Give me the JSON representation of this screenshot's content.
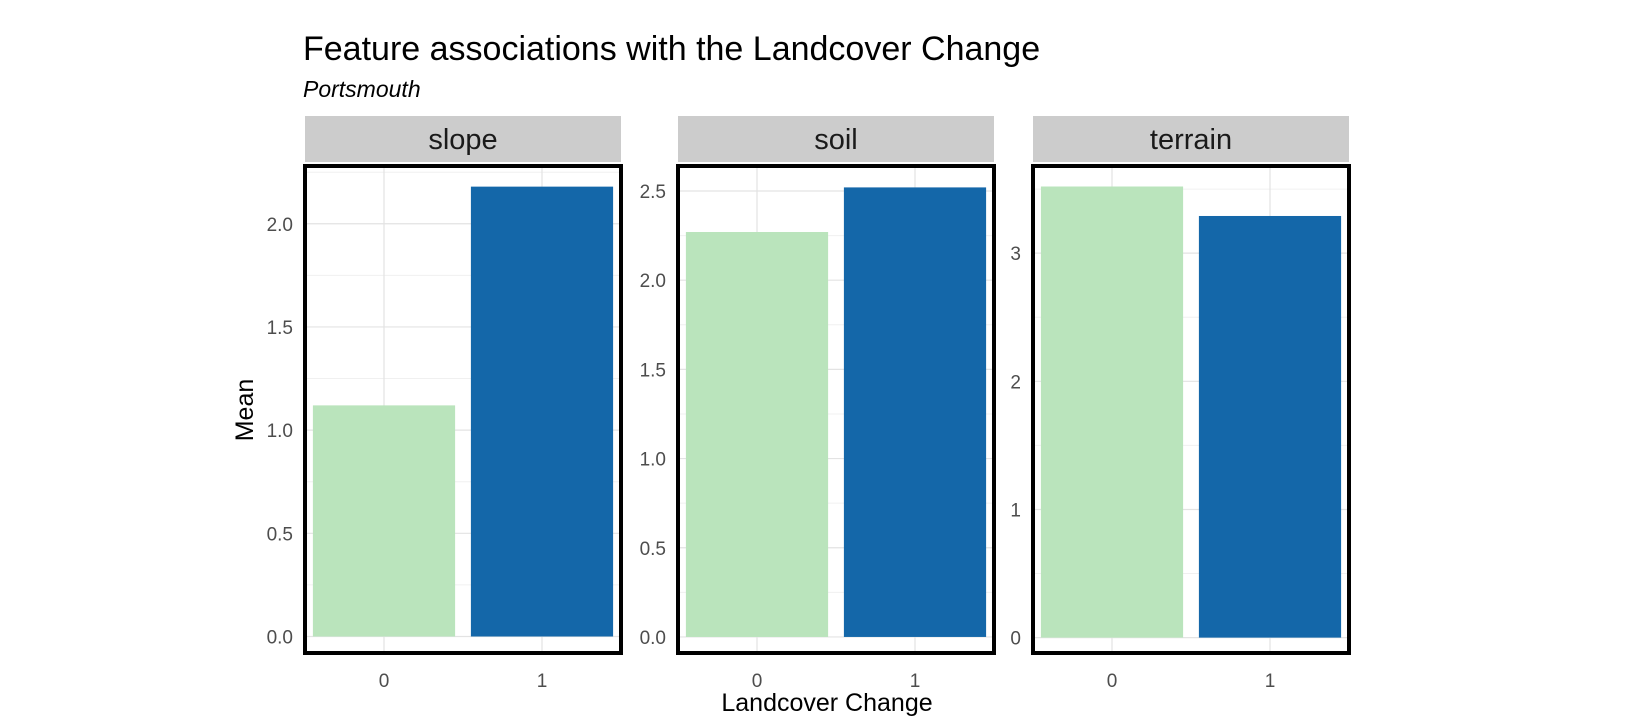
{
  "chart_data": {
    "type": "bar",
    "title": "Feature associations with the Landcover Change",
    "subtitle": "Portsmouth",
    "xlabel": "Landcover Change",
    "ylabel": "Mean",
    "categories": [
      "0",
      "1"
    ],
    "colors": {
      "0": "#bae4bc",
      "1": "#1467a9"
    },
    "grid": true,
    "legend": "none",
    "facets": [
      {
        "name": "slope",
        "values": [
          1.12,
          2.18
        ],
        "ylim": [
          -0.08,
          2.28
        ],
        "yticks": [
          0.0,
          0.5,
          1.0,
          1.5,
          2.0
        ],
        "ytick_labels": [
          "0.0",
          "0.5",
          "1.0",
          "1.5",
          "2.0"
        ]
      },
      {
        "name": "soil",
        "values": [
          2.27,
          2.52
        ],
        "ylim": [
          -0.09,
          2.64
        ],
        "yticks": [
          0.0,
          0.5,
          1.0,
          1.5,
          2.0,
          2.5
        ],
        "ytick_labels": [
          "0.0",
          "0.5",
          "1.0",
          "1.5",
          "2.0",
          "2.5"
        ]
      },
      {
        "name": "terrain",
        "values": [
          3.52,
          3.29
        ],
        "ylim": [
          -0.12,
          3.68
        ],
        "yticks": [
          0,
          1,
          2,
          3
        ],
        "ytick_labels": [
          "0",
          "1",
          "2",
          "3"
        ]
      }
    ]
  }
}
